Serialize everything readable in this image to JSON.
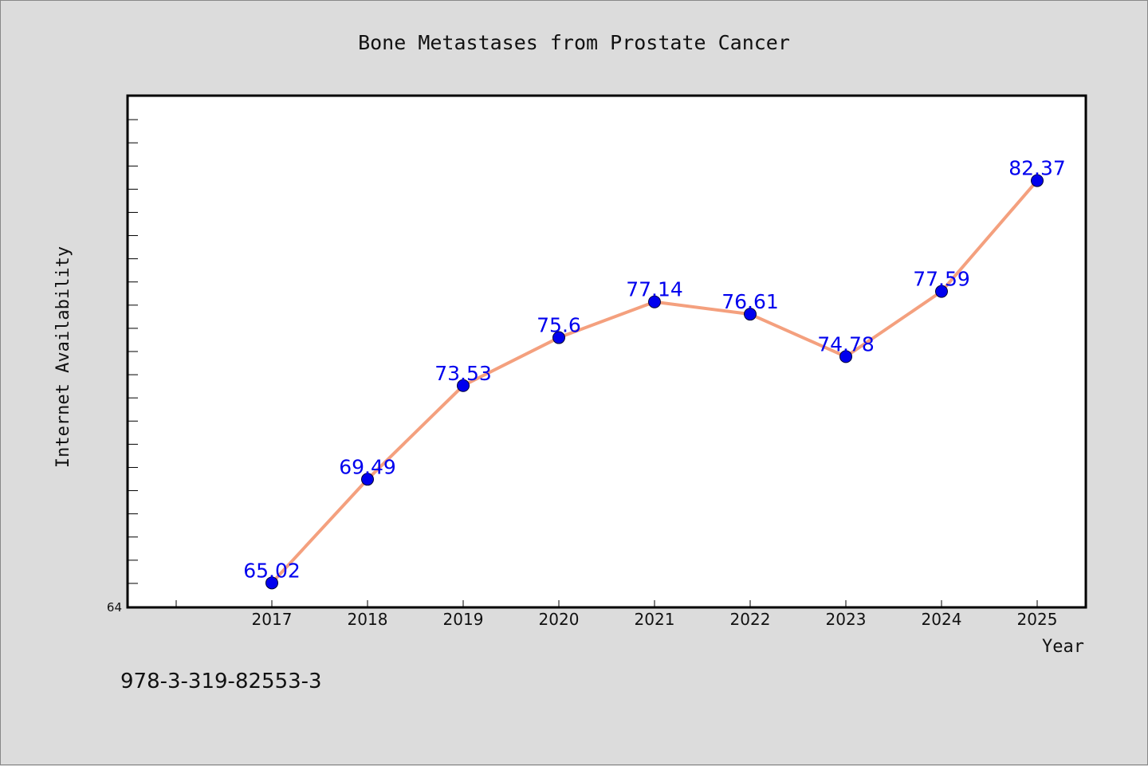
{
  "chart_data": {
    "type": "line",
    "title": "Bone Metastases from Prostate Cancer",
    "xlabel": "Year",
    "ylabel": "Internet Availability",
    "categories": [
      "2017",
      "2018",
      "2019",
      "2020",
      "2021",
      "2022",
      "2023",
      "2024",
      "2025"
    ],
    "series": [
      {
        "values": [
          65.02,
          69.49,
          73.53,
          75.6,
          77.14,
          76.61,
          74.78,
          77.59,
          82.37
        ],
        "labels": [
          "65.02",
          "69.49",
          "73.53",
          "75.6",
          "77.14",
          "76.61",
          "74.78",
          "77.59",
          "82.37"
        ],
        "line_color": "#f4a07e",
        "marker_color": "#0000ee"
      }
    ],
    "ylim": [
      64,
      86
    ],
    "yticks_labeled": [
      "64"
    ],
    "grid": false,
    "label_color": "#0000ee"
  },
  "footer": {
    "isbn": "978-3-319-82553-3"
  }
}
